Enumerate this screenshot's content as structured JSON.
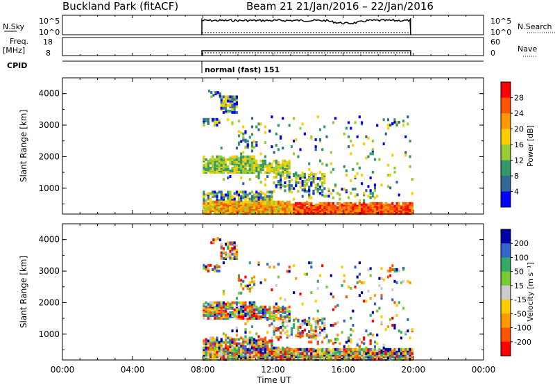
{
  "header": {
    "title_left": "Buckland Park (fitACF)",
    "title_right": "Beam 21  21/Jan/2016 – 22/Jan/2016"
  },
  "strips": {
    "nsky_label": "N.Sky",
    "nsky_ticks": [
      "10^5",
      "10^0"
    ],
    "nsky_ticks_right": [
      "10^5",
      "10^0"
    ],
    "nsearch_label": "N.Search",
    "freq_label": "Freq.",
    "freq_unit": "[MHz]",
    "freq_ticks": [
      "18",
      "8"
    ],
    "nave_label": "Nave",
    "nave_ticks": [
      "60",
      "0"
    ],
    "cpid_label": "CPID",
    "cpid_value": "normal (fast) 151"
  },
  "chart_data": [
    {
      "type": "heatmap",
      "panel": "power",
      "ylabel": "Slant Range [km]",
      "yticks": [
        "4000",
        "3000",
        "2000",
        "1000"
      ],
      "ylim": [
        180,
        4500
      ],
      "xlim": [
        0,
        24
      ],
      "colorbar": {
        "label": "Power [dB]",
        "ticks": [
          "28",
          "24",
          "20",
          "16",
          "12",
          "8",
          "4"
        ],
        "colors": [
          "#ff0000",
          "#ff5500",
          "#ff9900",
          "#ffcc00",
          "#99cc33",
          "#339966",
          "#336699",
          "#0000ff"
        ]
      },
      "data_extent_ut": [
        8,
        20
      ]
    },
    {
      "type": "heatmap",
      "panel": "velocity",
      "ylabel": "Slant Range [km]",
      "yticks": [
        "4000",
        "3000",
        "2000",
        "1000"
      ],
      "ylim": [
        180,
        4500
      ],
      "xlim": [
        0,
        24
      ],
      "colorbar": {
        "label": "Velocity [m s⁻¹]",
        "ticks": [
          "200",
          "100",
          "50",
          "15",
          "-15",
          "-50",
          "-100",
          "-200"
        ],
        "colors": [
          "#0000aa",
          "#3366cc",
          "#33aa66",
          "#77cc33",
          "#cccccc",
          "#ffcc00",
          "#ff9900",
          "#ff5500",
          "#ff0000"
        ]
      },
      "data_extent_ut": [
        8,
        20
      ]
    }
  ],
  "xaxis": {
    "ticks": [
      "00:00",
      "04:00",
      "08:00",
      "12:00",
      "16:00",
      "20:00",
      "00:00"
    ],
    "label": "Time UT"
  }
}
